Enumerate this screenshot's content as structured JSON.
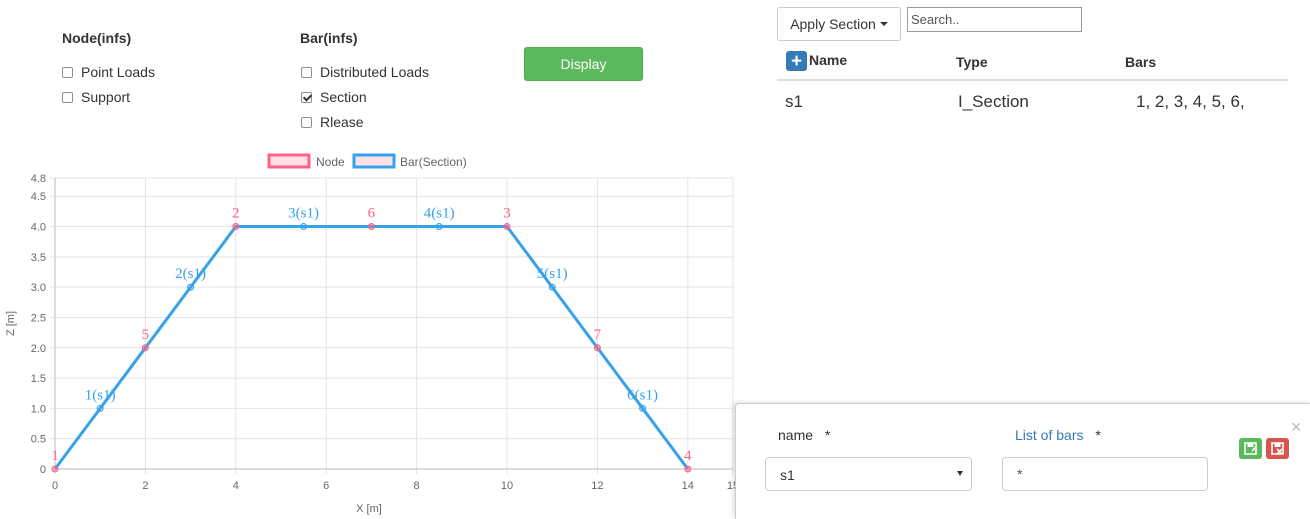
{
  "filters": {
    "node": {
      "title": "Node(infs)",
      "options": [
        {
          "label": "Point Loads",
          "checked": false
        },
        {
          "label": "Support",
          "checked": false
        }
      ]
    },
    "bar": {
      "title": "Bar(infs)",
      "options": [
        {
          "label": "Distributed Loads",
          "checked": false
        },
        {
          "label": "Section",
          "checked": true
        },
        {
          "label": "Rlease",
          "checked": false
        }
      ]
    },
    "display_label": "Display"
  },
  "toolbar": {
    "apply_section_label": "Apply Section",
    "search_placeholder": "Search.."
  },
  "table": {
    "headers": {
      "name": "Name",
      "type": "Type",
      "bars": "Bars"
    },
    "rows": [
      {
        "name": "s1",
        "type": "I_Section",
        "bars": "1, 2, 3, 4, 5, 6,"
      }
    ]
  },
  "chart_data": {
    "type": "line",
    "legend": [
      "Node",
      "Bar(Section)"
    ],
    "legend_position": "top-center",
    "xlabel": "X [m]",
    "ylabel": "Z [m]",
    "xlim": [
      0,
      15
    ],
    "ylim": [
      0,
      4.8
    ],
    "x_ticks": [
      "0",
      "2",
      "4",
      "6",
      "8",
      "10",
      "12",
      "14",
      "15"
    ],
    "y_ticks": [
      "0",
      "0.5",
      "1.0",
      "1.5",
      "2.0",
      "2.5",
      "3.0",
      "3.5",
      "4.0",
      "4.5",
      "4.8"
    ],
    "grid": true,
    "colors": {
      "node": "#ff6384",
      "bar": "#36a2eb"
    },
    "nodes": [
      {
        "label": "1",
        "x": 0,
        "z": 0
      },
      {
        "label": "5",
        "x": 2,
        "z": 2
      },
      {
        "label": "2",
        "x": 4,
        "z": 4
      },
      {
        "label": "6",
        "x": 7,
        "z": 4
      },
      {
        "label": "3",
        "x": 10,
        "z": 4
      },
      {
        "label": "7",
        "x": 12,
        "z": 2
      },
      {
        "label": "4",
        "x": 14,
        "z": 0
      }
    ],
    "bars": [
      {
        "label": "1(s1)",
        "x": 1,
        "z": 1
      },
      {
        "label": "2(s1)",
        "x": 3,
        "z": 3
      },
      {
        "label": "3(s1)",
        "x": 5.5,
        "z": 4
      },
      {
        "label": "4(s1)",
        "x": 8.5,
        "z": 4
      },
      {
        "label": "5(s1)",
        "x": 11,
        "z": 3
      },
      {
        "label": "6(s1)",
        "x": 13,
        "z": 1
      }
    ],
    "path": [
      [
        0,
        0
      ],
      [
        4,
        4
      ],
      [
        10,
        4
      ],
      [
        14,
        0
      ]
    ]
  },
  "editor": {
    "name_label": "name",
    "name_required": "*",
    "name_value": "s1",
    "bars_label": "List of bars",
    "bars_required": "*",
    "bars_value": "*",
    "close_glyph": "×"
  }
}
